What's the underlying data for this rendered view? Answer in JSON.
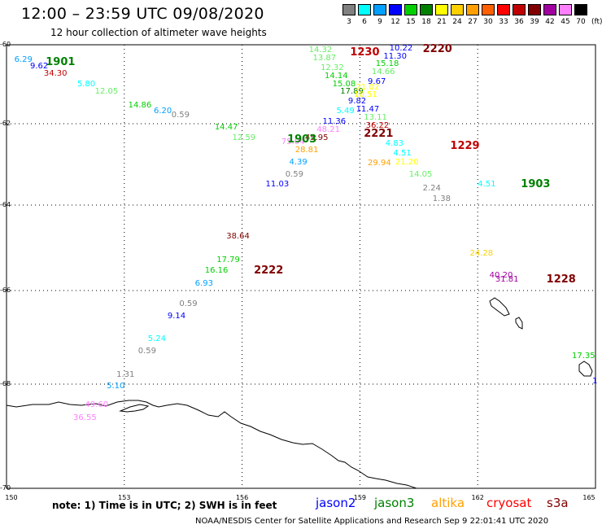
{
  "header": {
    "title": "12:00 – 23:59 UTC 09/08/2020",
    "subtitle": "12 hour collection of altimeter wave heights"
  },
  "legend": {
    "unit": "(ft)",
    "bins": [
      {
        "label": "3",
        "color": "#808080"
      },
      {
        "label": "6",
        "color": "#00ffff"
      },
      {
        "label": "9",
        "color": "#00a0ff"
      },
      {
        "label": "12",
        "color": "#0000ff"
      },
      {
        "label": "15",
        "color": "#00d000"
      },
      {
        "label": "18",
        "color": "#008000"
      },
      {
        "label": "21",
        "color": "#ffff00"
      },
      {
        "label": "24",
        "color": "#ffd000"
      },
      {
        "label": "27",
        "color": "#ffa000"
      },
      {
        "label": "30",
        "color": "#ff6000"
      },
      {
        "label": "33",
        "color": "#ff0000"
      },
      {
        "label": "36",
        "color": "#c00000"
      },
      {
        "label": "39",
        "color": "#800000"
      },
      {
        "label": "42",
        "color": "#a000a0"
      },
      {
        "label": "45",
        "color": "#ff80ff"
      },
      {
        "label": "70",
        "color": "#000000"
      }
    ]
  },
  "axes": {
    "y_labels": [
      "-60",
      "-62",
      "-64",
      "-66",
      "-68",
      "-70"
    ],
    "x_labels": [
      "150",
      "153",
      "156",
      "159",
      "162",
      "165"
    ]
  },
  "observations": [
    {
      "text": "6.29",
      "color": "#00a0ff",
      "lon": 150.2,
      "lat": -60.4
    },
    {
      "text": "9.62",
      "color": "#0000ff",
      "lon": 150.6,
      "lat": -60.55
    },
    {
      "text": "34.30",
      "color": "#c00000",
      "lon": 150.95,
      "lat": -60.75
    },
    {
      "text": "5.80",
      "color": "#00ffff",
      "lon": 151.8,
      "lat": -61.0
    },
    {
      "text": "12.05",
      "color": "#66ee66",
      "lon": 152.25,
      "lat": -61.2
    },
    {
      "text": "14.86",
      "color": "#00d000",
      "lon": 153.1,
      "lat": -61.55
    },
    {
      "text": "6.20",
      "color": "#00a0ff",
      "lon": 153.75,
      "lat": -61.7
    },
    {
      "text": "0.59",
      "color": "#808080",
      "lon": 154.2,
      "lat": -61.8
    },
    {
      "text": "14.47",
      "color": "#00d000",
      "lon": 155.3,
      "lat": -62.1
    },
    {
      "text": "14.32",
      "color": "#66ee66",
      "lon": 157.7,
      "lat": -60.15
    },
    {
      "text": "13.87",
      "color": "#66ee66",
      "lon": 157.8,
      "lat": -60.35
    },
    {
      "text": "12.32",
      "color": "#66ee66",
      "lon": 158.0,
      "lat": -60.6
    },
    {
      "text": "14.14",
      "color": "#00d000",
      "lon": 158.1,
      "lat": -60.8
    },
    {
      "text": "15.08",
      "color": "#00d000",
      "lon": 158.3,
      "lat": -61.0
    },
    {
      "text": "17.89",
      "color": "#008000",
      "lon": 158.5,
      "lat": -61.2
    },
    {
      "text": "21.02",
      "color": "#ffff00",
      "lon": 158.9,
      "lat": -61.1
    },
    {
      "text": "10.51",
      "color": "#ffff00",
      "lon": 158.85,
      "lat": -61.28
    },
    {
      "text": "9.82",
      "color": "#0000ff",
      "lon": 158.7,
      "lat": -61.45
    },
    {
      "text": "11.47",
      "color": "#0000ff",
      "lon": 158.9,
      "lat": -61.65
    },
    {
      "text": "5.49",
      "color": "#00ffff",
      "lon": 158.4,
      "lat": -61.7
    },
    {
      "text": "13.11",
      "color": "#66ee66",
      "lon": 159.1,
      "lat": -61.85
    },
    {
      "text": "11.36",
      "color": "#0000ff",
      "lon": 158.05,
      "lat": -61.95
    },
    {
      "text": "36.22",
      "color": "#c00000",
      "lon": 159.15,
      "lat": -62.05
    },
    {
      "text": "48.21",
      "color": "#ff80ff",
      "lon": 157.9,
      "lat": -62.15
    },
    {
      "text": "45.95",
      "color": "#800000",
      "lon": 157.6,
      "lat": -62.35
    },
    {
      "text": "12.59",
      "color": "#66ee66",
      "lon": 155.75,
      "lat": -62.35
    },
    {
      "text": "75.04",
      "color": "#ff80ff",
      "lon": 157.0,
      "lat": -62.45
    },
    {
      "text": "28.81",
      "color": "#ffa000",
      "lon": 157.35,
      "lat": -62.65
    },
    {
      "text": "4.39",
      "color": "#00a0ff",
      "lon": 157.2,
      "lat": -62.95
    },
    {
      "text": "0.59",
      "color": "#808080",
      "lon": 157.1,
      "lat": -63.25
    },
    {
      "text": "11.03",
      "color": "#0000ff",
      "lon": 156.6,
      "lat": -63.5
    },
    {
      "text": "10.22",
      "color": "#0000ff",
      "lon": 159.75,
      "lat": -60.1
    },
    {
      "text": "11.30",
      "color": "#0000ff",
      "lon": 159.6,
      "lat": -60.3
    },
    {
      "text": "15.18",
      "color": "#00d000",
      "lon": 159.4,
      "lat": -60.5
    },
    {
      "text": "14.66",
      "color": "#66ee66",
      "lon": 159.3,
      "lat": -60.7
    },
    {
      "text": "9.67",
      "color": "#0000ff",
      "lon": 159.2,
      "lat": -60.95
    },
    {
      "text": "4.83",
      "color": "#00ffff",
      "lon": 159.65,
      "lat": -62.5
    },
    {
      "text": "4.51",
      "color": "#00ffff",
      "lon": 159.85,
      "lat": -62.73
    },
    {
      "text": "21.20",
      "color": "#ffff00",
      "lon": 159.9,
      "lat": -62.95
    },
    {
      "text": "29.94",
      "color": "#ffa000",
      "lon": 159.2,
      "lat": -62.98
    },
    {
      "text": "14.05",
      "color": "#66ee66",
      "lon": 160.25,
      "lat": -63.25
    },
    {
      "text": "2.24",
      "color": "#808080",
      "lon": 160.6,
      "lat": -63.6
    },
    {
      "text": "1.38",
      "color": "#808080",
      "lon": 160.85,
      "lat": -63.85
    },
    {
      "text": "4.51",
      "color": "#00ffff",
      "lon": 162.0,
      "lat": -63.5
    },
    {
      "text": "24.28",
      "color": "#ffd000",
      "lon": 161.8,
      "lat": -65.15
    },
    {
      "text": "40.20",
      "color": "#a000a0",
      "lon": 162.3,
      "lat": -65.65
    },
    {
      "text": "31.81",
      "color": "#a000a0",
      "lon": 162.45,
      "lat": -65.75
    },
    {
      "text": "38.64",
      "color": "#800000",
      "lon": 155.6,
      "lat": -64.75
    },
    {
      "text": "17.79",
      "color": "#00d000",
      "lon": 155.35,
      "lat": -65.3
    },
    {
      "text": "16.16",
      "color": "#00d000",
      "lon": 155.05,
      "lat": -65.55
    },
    {
      "text": "6.93",
      "color": "#00a0ff",
      "lon": 154.8,
      "lat": -65.85
    },
    {
      "text": "0.59",
      "color": "#808080",
      "lon": 154.4,
      "lat": -66.3
    },
    {
      "text": "9.14",
      "color": "#0000ff",
      "lon": 154.1,
      "lat": -66.55
    },
    {
      "text": "5.24",
      "color": "#00ffff",
      "lon": 153.6,
      "lat": -67.05
    },
    {
      "text": "0.59",
      "color": "#808080",
      "lon": 153.35,
      "lat": -67.3
    },
    {
      "text": "1.31",
      "color": "#808080",
      "lon": 152.8,
      "lat": -67.8
    },
    {
      "text": "5.10",
      "color": "#00a0ff",
      "lon": 152.55,
      "lat": -68.05
    },
    {
      "text": "49.60",
      "color": "#ff80ff",
      "lon": 152.0,
      "lat": -68.4
    },
    {
      "text": "36.55",
      "color": "#ff80ff",
      "lon": 151.7,
      "lat": -68.65
    },
    {
      "text": "17.35",
      "color": "#00d000",
      "lon": 164.4,
      "lat": -67.4
    },
    {
      "text": "1",
      "color": "#0000ff",
      "lon": 164.92,
      "lat": -67.95
    }
  ],
  "pass_times": [
    {
      "text": "1901",
      "color": "#008000",
      "lon": 151.0,
      "lat": -60.45
    },
    {
      "text": "1230",
      "color": "#c00000",
      "lon": 158.75,
      "lat": -60.2
    },
    {
      "text": "2220",
      "color": "#800000",
      "lon": 160.6,
      "lat": -60.12
    },
    {
      "text": "1903",
      "color": "#008000",
      "lon": 157.15,
      "lat": -62.4
    },
    {
      "text": "2221",
      "color": "#800000",
      "lon": 159.1,
      "lat": -62.25
    },
    {
      "text": "1229",
      "color": "#c00000",
      "lon": 161.3,
      "lat": -62.55
    },
    {
      "text": "1903",
      "color": "#008000",
      "lon": 163.1,
      "lat": -63.5
    },
    {
      "text": "2222",
      "color": "#800000",
      "lon": 156.3,
      "lat": -65.55
    },
    {
      "text": "1228",
      "color": "#800000",
      "lon": 163.75,
      "lat": -65.75
    }
  ],
  "note": "note:  1) Time is in UTC;  2) SWH is in feet",
  "satellites": [
    {
      "name": "jason2",
      "color": "#0000ff"
    },
    {
      "name": "jason3",
      "color": "#008000"
    },
    {
      "name": "altika",
      "color": "#ffa000"
    },
    {
      "name": "cryosat",
      "color": "#ff0000"
    },
    {
      "name": "s3a",
      "color": "#800000"
    }
  ],
  "footer": "NOAA/NESDIS Center for Satellite Applications and Research   Sep  9 22:01:41 UTC 2020"
}
